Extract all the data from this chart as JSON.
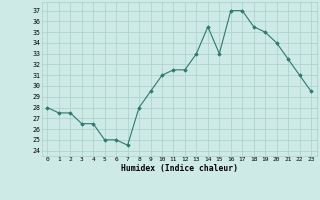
{
  "x": [
    0,
    1,
    2,
    3,
    4,
    5,
    6,
    7,
    8,
    9,
    10,
    11,
    12,
    13,
    14,
    15,
    16,
    17,
    18,
    19,
    20,
    21,
    22,
    23
  ],
  "y": [
    28,
    27.5,
    27.5,
    26.5,
    26.5,
    25,
    25,
    24.5,
    28,
    29.5,
    31,
    31.5,
    31.5,
    33,
    35.5,
    33,
    37,
    37,
    35.5,
    35,
    34,
    32.5,
    31,
    29.5
  ],
  "line_color": "#2d7a6e",
  "marker_color": "#2d7a6e",
  "bg_color": "#ceeae6",
  "grid_color": "#aacfca",
  "xlabel": "Humidex (Indice chaleur)",
  "ylabel_ticks": [
    24,
    25,
    26,
    27,
    28,
    29,
    30,
    31,
    32,
    33,
    34,
    35,
    36,
    37
  ],
  "ylim": [
    23.5,
    37.8
  ],
  "xlim": [
    -0.5,
    23.5
  ],
  "title": ""
}
